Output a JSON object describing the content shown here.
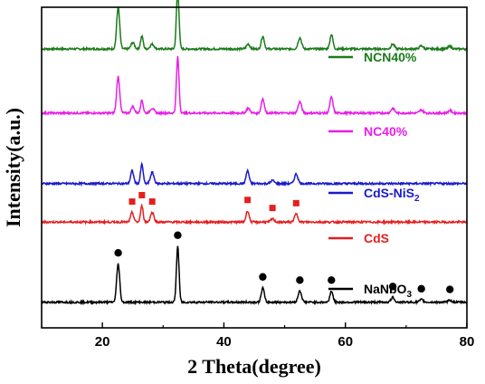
{
  "chart_data": {
    "type": "line",
    "xlabel": "2 Theta(degree)",
    "ylabel": "Intensity(a.u.)",
    "xlim": [
      10,
      80
    ],
    "x_ticks": [
      "20",
      "40",
      "60",
      "80"
    ],
    "grid": false,
    "legend_position": "right of each trace",
    "series": [
      {
        "name": "NCN40%",
        "color": "#1b7a1b",
        "baseline": 0.87,
        "peaks": [
          {
            "x": 22.6,
            "h": 0.13,
            "w": 0.35
          },
          {
            "x": 25.0,
            "h": 0.02,
            "w": 0.4
          },
          {
            "x": 26.5,
            "h": 0.04,
            "w": 0.3
          },
          {
            "x": 28.2,
            "h": 0.015,
            "w": 0.45
          },
          {
            "x": 32.4,
            "h": 0.185,
            "w": 0.3
          },
          {
            "x": 44.0,
            "h": 0.015,
            "w": 0.4
          },
          {
            "x": 46.4,
            "h": 0.04,
            "w": 0.35
          },
          {
            "x": 52.5,
            "h": 0.035,
            "w": 0.4
          },
          {
            "x": 57.7,
            "h": 0.045,
            "w": 0.35
          },
          {
            "x": 67.8,
            "h": 0.015,
            "w": 0.4
          },
          {
            "x": 72.5,
            "h": 0.01,
            "w": 0.4
          },
          {
            "x": 77.2,
            "h": 0.008,
            "w": 0.4
          }
        ]
      },
      {
        "name": "NC40%",
        "color": "#e81ee8",
        "baseline": 0.67,
        "peaks": [
          {
            "x": 22.6,
            "h": 0.115,
            "w": 0.35
          },
          {
            "x": 25.0,
            "h": 0.02,
            "w": 0.4
          },
          {
            "x": 26.5,
            "h": 0.04,
            "w": 0.3
          },
          {
            "x": 28.2,
            "h": 0.015,
            "w": 0.45
          },
          {
            "x": 32.4,
            "h": 0.175,
            "w": 0.3
          },
          {
            "x": 44.0,
            "h": 0.015,
            "w": 0.4
          },
          {
            "x": 46.4,
            "h": 0.045,
            "w": 0.35
          },
          {
            "x": 52.5,
            "h": 0.035,
            "w": 0.4
          },
          {
            "x": 57.7,
            "h": 0.05,
            "w": 0.35
          },
          {
            "x": 67.8,
            "h": 0.015,
            "w": 0.4
          },
          {
            "x": 72.5,
            "h": 0.01,
            "w": 0.4
          },
          {
            "x": 77.2,
            "h": 0.008,
            "w": 0.4
          }
        ]
      },
      {
        "name": "CdS-NiS",
        "name_subscript": "2",
        "color": "#1a1acc",
        "baseline": 0.45,
        "peaks": [
          {
            "x": 24.9,
            "h": 0.04,
            "w": 0.35
          },
          {
            "x": 26.5,
            "h": 0.06,
            "w": 0.3
          },
          {
            "x": 28.2,
            "h": 0.035,
            "w": 0.4
          },
          {
            "x": 43.9,
            "h": 0.04,
            "w": 0.35
          },
          {
            "x": 48.0,
            "h": 0.01,
            "w": 0.4
          },
          {
            "x": 51.9,
            "h": 0.03,
            "w": 0.4
          }
        ]
      },
      {
        "name": "CdS",
        "color": "#e61e1e",
        "baseline": 0.33,
        "peaks": [
          {
            "x": 24.9,
            "h": 0.03,
            "w": 0.35
          },
          {
            "x": 26.5,
            "h": 0.05,
            "w": 0.3
          },
          {
            "x": 28.2,
            "h": 0.03,
            "w": 0.4
          },
          {
            "x": 43.9,
            "h": 0.035,
            "w": 0.35
          },
          {
            "x": 48.0,
            "h": 0.01,
            "w": 0.4
          },
          {
            "x": 51.9,
            "h": 0.025,
            "w": 0.4
          }
        ]
      },
      {
        "name": "NaNbO",
        "name_subscript": "3",
        "color": "#000000",
        "baseline": 0.08,
        "peaks": [
          {
            "x": 22.6,
            "h": 0.12,
            "w": 0.35
          },
          {
            "x": 32.4,
            "h": 0.175,
            "w": 0.3
          },
          {
            "x": 46.4,
            "h": 0.045,
            "w": 0.35
          },
          {
            "x": 52.5,
            "h": 0.035,
            "w": 0.4
          },
          {
            "x": 57.7,
            "h": 0.035,
            "w": 0.35
          },
          {
            "x": 67.8,
            "h": 0.015,
            "w": 0.4
          },
          {
            "x": 72.5,
            "h": 0.008,
            "w": 0.4
          },
          {
            "x": 77.2,
            "h": 0.006,
            "w": 0.4
          }
        ]
      }
    ],
    "markers": [
      {
        "series": "CdS",
        "shape": "square",
        "color": "#e61e1e",
        "x": [
          24.9,
          26.5,
          28.2,
          43.9,
          48.0,
          51.9
        ]
      },
      {
        "series": "NaNbO",
        "shape": "circle",
        "color": "#000000",
        "x": [
          22.6,
          32.4,
          46.4,
          52.5,
          57.7,
          67.8,
          72.5,
          77.2
        ]
      }
    ]
  }
}
